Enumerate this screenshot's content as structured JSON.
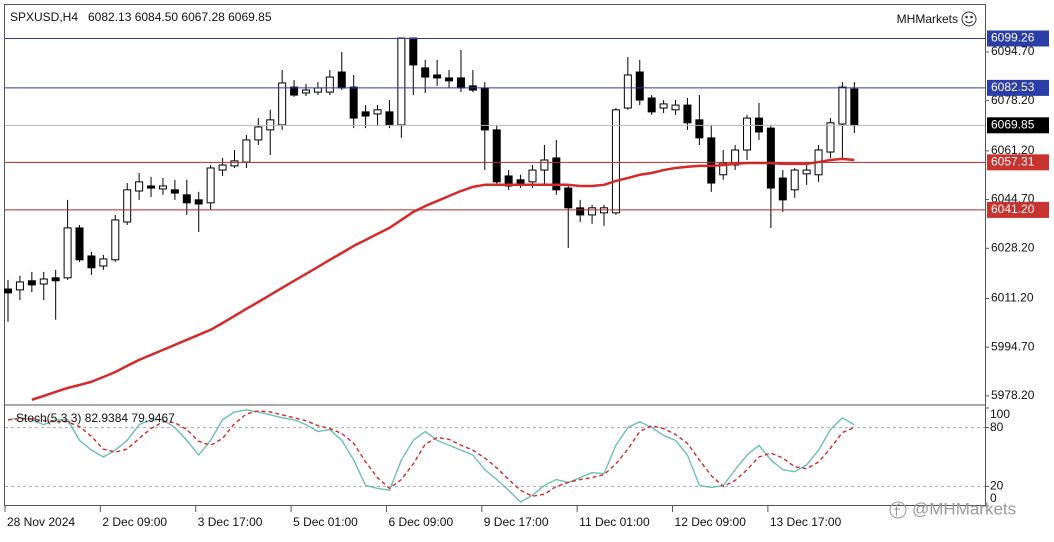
{
  "chart_data": [
    {
      "type": "candlestick",
      "title": "SPXUSD,H4",
      "subtitle": "6082.13 6084.50 6067.28 6069.85",
      "brand": "MHMarkets",
      "categories": [
        "28 Nov 2024",
        null,
        null,
        null,
        null,
        null,
        null,
        null,
        "2 Dec 09:00",
        null,
        null,
        null,
        null,
        null,
        null,
        null,
        "3 Dec 17:00",
        null,
        null,
        null,
        null,
        null,
        null,
        null,
        "5 Dec 01:00",
        null,
        null,
        null,
        null,
        null,
        null,
        null,
        "6 Dec 09:00",
        null,
        null,
        null,
        null,
        null,
        null,
        null,
        "9 Dec 17:00",
        null,
        null,
        null,
        null,
        null,
        null,
        null,
        "11 Dec 01:00",
        null,
        null,
        null,
        null,
        null,
        null,
        null,
        "12 Dec 09:00",
        null,
        null,
        null,
        null,
        null,
        null,
        null,
        "13 Dec 17:00",
        null,
        null,
        null,
        null,
        null,
        null,
        null
      ],
      "open": [
        6014.4,
        6014.1,
        6017.2,
        6016.1,
        6018.2,
        6018.2,
        6035.1,
        6025.6,
        6022.2,
        6024.3,
        6037.1,
        6047.6,
        6049.3,
        6048.3,
        6048.0,
        6046.3,
        6044.6,
        6043.6,
        6054.7,
        6056.1,
        6057.4,
        6064.9,
        6068.3,
        6070.0,
        6082.8,
        6080.8,
        6081.1,
        6081.1,
        6087.9,
        6082.8,
        6074.4,
        6073.7,
        6074.4,
        6070.0,
        6099.4,
        6089.3,
        6086.9,
        6085.9,
        6085.9,
        6083.2,
        6082.5,
        6068.3,
        6052.7,
        6051.4,
        6050.7,
        6054.7,
        6058.8,
        6048.6,
        6041.9,
        6039.5,
        6040.2,
        6040.2,
        6075.7,
        6087.9,
        6079.1,
        6075.7,
        6075.1,
        6076.7,
        6071.7,
        6065.6,
        6053.1,
        6056.4,
        6061.5,
        6072.3,
        6068.9,
        6052.0,
        6048.0,
        6053.4,
        6053.1,
        6060.8,
        6070.3,
        6082.13
      ],
      "high": [
        6017.5,
        6018.9,
        6020.2,
        6020.2,
        6020.9,
        6044.6,
        6036.1,
        6027.0,
        6026.0,
        6039.5,
        6050.3,
        6053.7,
        6052.4,
        6052.0,
        6051.4,
        6051.4,
        6047.3,
        6056.4,
        6058.8,
        6061.5,
        6066.6,
        6072.3,
        6075.1,
        6088.6,
        6085.2,
        6083.9,
        6084.5,
        6088.6,
        6094.7,
        6086.9,
        6076.7,
        6076.7,
        6078.4,
        6099.4,
        6099.4,
        6092.0,
        6092.0,
        6088.6,
        6095.4,
        6088.6,
        6084.5,
        6070.0,
        6054.7,
        6053.1,
        6056.4,
        6063.2,
        6064.9,
        6049.7,
        6044.6,
        6042.9,
        6042.9,
        6075.7,
        6093.0,
        6092.0,
        6080.1,
        6078.4,
        6078.4,
        6079.1,
        6080.1,
        6070.0,
        6061.5,
        6063.2,
        6073.4,
        6077.4,
        6070.0,
        6054.7,
        6055.4,
        6056.4,
        6063.2,
        6072.3,
        6084.5,
        6084.5
      ],
      "low": [
        6003.3,
        6010.7,
        6013.4,
        6010.7,
        6004.0,
        6017.5,
        6023.6,
        6019.2,
        6020.9,
        6023.6,
        6036.1,
        6044.6,
        6045.6,
        6046.3,
        6044.6,
        6039.5,
        6033.7,
        6041.2,
        6052.7,
        6055.4,
        6055.4,
        6063.2,
        6059.8,
        6068.3,
        6079.5,
        6079.8,
        6080.1,
        6080.1,
        6081.8,
        6068.9,
        6068.9,
        6069.6,
        6068.9,
        6065.6,
        6080.1,
        6080.8,
        6083.2,
        6082.5,
        6081.1,
        6081.1,
        6054.7,
        6049.3,
        6048.0,
        6048.6,
        6048.6,
        6049.7,
        6046.3,
        6028.3,
        6037.1,
        6036.5,
        6035.8,
        6039.5,
        6075.1,
        6076.7,
        6073.4,
        6074.0,
        6073.4,
        6068.3,
        6063.2,
        6047.3,
        6051.4,
        6054.7,
        6058.1,
        6064.9,
        6035.1,
        6040.5,
        6045.3,
        6049.7,
        6050.7,
        6058.8,
        6058.1,
        6067.28
      ],
      "close": [
        6013.1,
        6016.8,
        6015.8,
        6017.8,
        6017.2,
        6035.1,
        6024.3,
        6021.6,
        6024.6,
        6037.8,
        6048.0,
        6050.7,
        6048.6,
        6049.3,
        6046.9,
        6043.6,
        6043.2,
        6055.4,
        6056.4,
        6057.8,
        6064.9,
        6069.3,
        6071.7,
        6084.2,
        6080.1,
        6081.8,
        6082.5,
        6086.2,
        6082.5,
        6072.3,
        6073.0,
        6075.1,
        6070.0,
        6099.4,
        6090.3,
        6086.2,
        6085.9,
        6084.9,
        6082.5,
        6081.8,
        6068.3,
        6050.7,
        6049.3,
        6050.0,
        6054.7,
        6058.1,
        6048.0,
        6041.9,
        6039.5,
        6041.9,
        6041.9,
        6075.1,
        6086.9,
        6078.4,
        6074.4,
        6077.1,
        6076.7,
        6070.7,
        6065.6,
        6050.3,
        6057.1,
        6061.5,
        6072.3,
        6067.6,
        6048.6,
        6044.6,
        6054.7,
        6054.7,
        6061.5,
        6070.7,
        6082.8,
        6069.85
      ],
      "series": [
        {
          "color": "#d42a2a",
          "values": [
            null,
            null,
            5976.9,
            5978.2,
            5979.6,
            5980.9,
            5981.9,
            5983.0,
            5984.6,
            5986.3,
            5988.4,
            5990.4,
            5992.1,
            5993.8,
            5995.5,
            5997.2,
            5998.9,
            6000.6,
            6002.9,
            6005.3,
            6007.7,
            6010.0,
            6012.4,
            6014.8,
            6017.2,
            6019.5,
            6021.9,
            6024.3,
            6026.6,
            6029.0,
            6031.0,
            6033.1,
            6035.1,
            6037.8,
            6040.5,
            6042.5,
            6044.2,
            6045.9,
            6047.6,
            6049.0,
            6049.7,
            6049.7,
            6049.7,
            6049.7,
            6049.7,
            6049.7,
            6049.7,
            6049.7,
            6049.3,
            6049.3,
            6049.7,
            6051.0,
            6052.0,
            6053.1,
            6053.7,
            6054.7,
            6055.4,
            6055.8,
            6056.1,
            6056.1,
            6056.4,
            6056.8,
            6057.1,
            6057.1,
            6057.1,
            6056.8,
            6056.8,
            6056.8,
            6057.4,
            6058.1,
            6058.5,
            6058.1
          ]
        }
      ],
      "up_color": "#ffffff",
      "down_color": "#000000",
      "levels": [
        {
          "value": 6099.26,
          "label": "6099.26",
          "color": "#2b3da6",
          "line_color": "#2b3da6"
        },
        {
          "value": 6082.53,
          "label": "6082.53",
          "color": "#2b3da6",
          "line_color": "#2b3da6"
        },
        {
          "value": 6069.85,
          "label": "6069.85",
          "color": "#000000",
          "line_color": "#b8b8b8"
        },
        {
          "value": 6057.31,
          "label": "6057.31",
          "color": "#c8322f",
          "line_color": "#b52a27"
        },
        {
          "value": 6041.2,
          "label": "6041.20",
          "color": "#c8322f",
          "line_color": "#b52a27"
        }
      ],
      "ylim": [
        5975.8,
        6110.6
      ],
      "yticks": [
        {
          "value": 6094.7,
          "label": "6094.70"
        },
        {
          "value": 6078.2,
          "label": "6078.20"
        },
        {
          "value": 6061.2,
          "label": "6061.20"
        },
        {
          "value": 6044.7,
          "label": "6044.70"
        },
        {
          "value": 6028.2,
          "label": "6028.20"
        },
        {
          "value": 6011.2,
          "label": "6011.20"
        },
        {
          "value": 5994.7,
          "label": "5994.70"
        },
        {
          "value": 5978.2,
          "label": "5978.20"
        }
      ]
    },
    {
      "type": "line",
      "title": "Stoch(5,3,3) 82.9384 79.9467",
      "series": [
        {
          "color": "#6cbfb3",
          "dashed": false,
          "values": [
            88,
            90,
            88,
            83,
            88,
            88,
            67,
            57,
            50,
            57,
            67,
            83,
            88,
            88,
            80,
            67,
            52,
            67,
            88,
            96,
            98,
            96,
            93,
            90,
            88,
            83,
            76,
            78,
            67,
            47,
            21,
            18,
            16,
            47,
            67,
            76,
            67,
            62,
            57,
            52,
            37,
            27,
            16,
            4,
            11,
            21,
            27,
            24,
            29,
            34,
            33,
            62,
            80,
            86,
            80,
            72,
            67,
            52,
            21,
            19,
            21,
            37,
            52,
            62,
            47,
            37,
            35,
            42,
            57,
            78,
            90,
            82.9384
          ]
        },
        {
          "color": "#d42a2a",
          "dashed": true,
          "values": [
            88,
            89,
            89,
            87,
            86,
            86,
            81,
            71,
            58,
            55,
            58,
            69,
            79,
            86,
            85,
            78,
            66,
            62,
            69,
            84,
            94,
            97,
            96,
            93,
            90,
            87,
            82,
            79,
            74,
            64,
            45,
            29,
            18,
            27,
            43,
            63,
            70,
            68,
            62,
            57,
            49,
            39,
            27,
            16,
            10,
            12,
            20,
            24,
            27,
            29,
            32,
            43,
            58,
            76,
            82,
            79,
            73,
            64,
            47,
            31,
            20,
            26,
            37,
            50,
            54,
            49,
            40,
            38,
            45,
            59,
            75,
            79.9467
          ]
        }
      ],
      "levels": [
        80,
        20
      ],
      "ylim": [
        0,
        100
      ],
      "yticks": [
        100,
        80,
        20,
        0
      ]
    }
  ],
  "watermark": "@MHMarkets"
}
